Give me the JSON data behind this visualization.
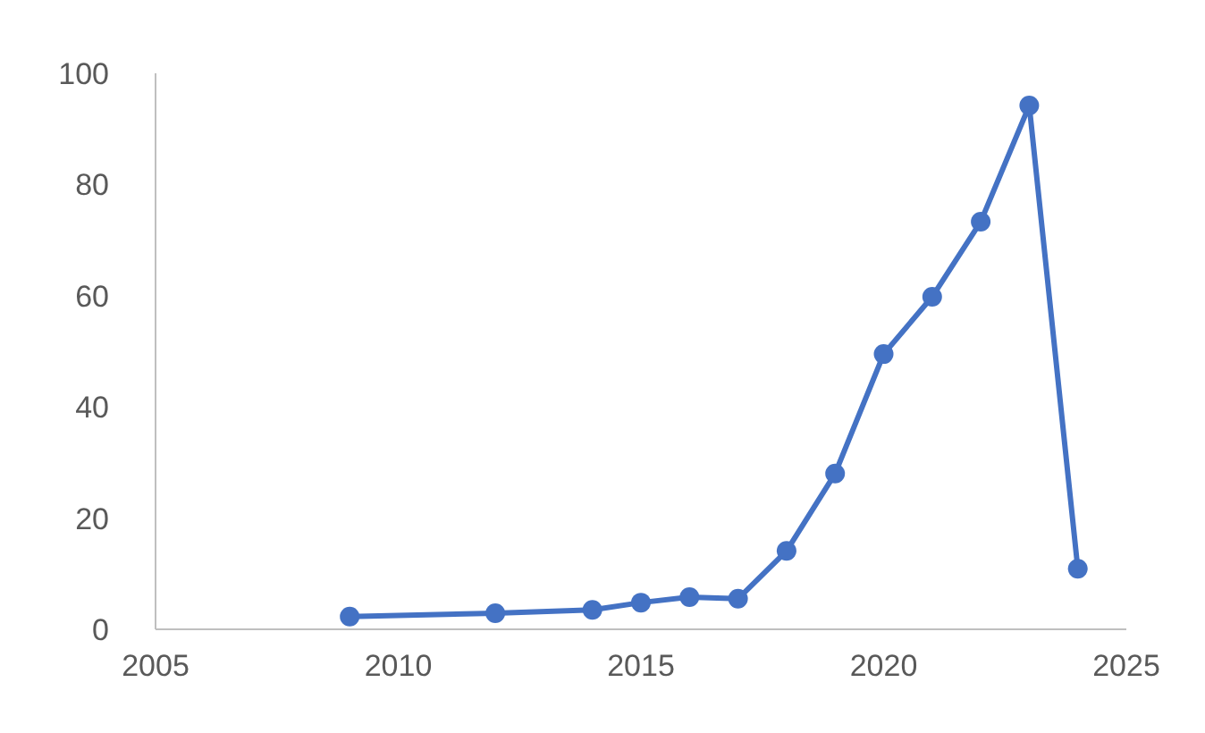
{
  "chart_data": {
    "type": "line",
    "x": [
      2009,
      2012,
      2014,
      2015,
      2016,
      2017,
      2018,
      2019,
      2020,
      2021,
      2022,
      2023,
      2024
    ],
    "series": [
      {
        "color": "#4472c4",
        "values": [
          2.3,
          2.9,
          3.5,
          4.8,
          5.8,
          5.5,
          14.1,
          28,
          49.5,
          59.8,
          73.3,
          94.2,
          10.9
        ]
      }
    ],
    "xlim": [
      2005,
      2025
    ],
    "xticks": [
      2005,
      2010,
      2015,
      2020,
      2025
    ],
    "ylim": [
      0,
      100
    ],
    "yticks": [
      0,
      20,
      40,
      60,
      80,
      100
    ],
    "grid": false,
    "legend": false,
    "marker": "circle",
    "line_style": "solid"
  }
}
